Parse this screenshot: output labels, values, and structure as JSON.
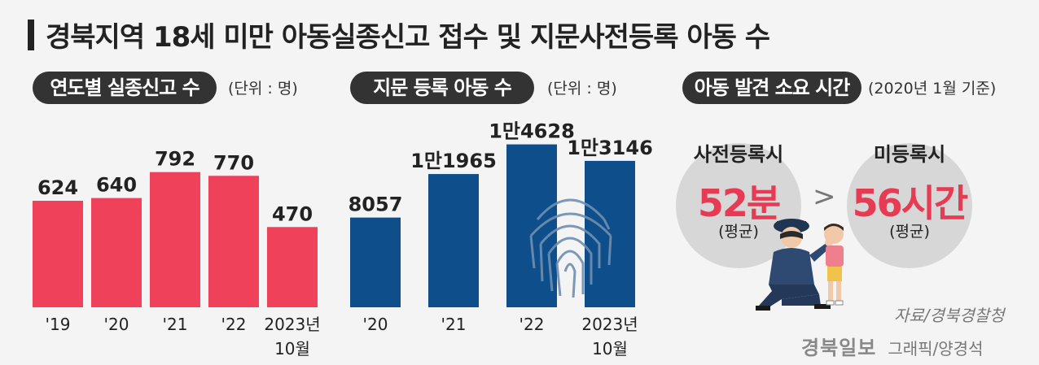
{
  "header": {
    "title": "경북지역 18세 미만 아동실종신고 접수 및 지문사전등록 아동 수"
  },
  "sections": {
    "reports": {
      "label": "연도별 실종신고 수",
      "unit": "(단위 : 명)"
    },
    "fingerprint": {
      "label": "지문 등록 아동 수",
      "unit": "(단위 : 명)"
    },
    "search_time": {
      "label": "아동 발견 소요 시간",
      "note": "(2020년 1월 기준)"
    }
  },
  "chart_data": [
    {
      "type": "bar",
      "categories": [
        "'19",
        "'20",
        "'21",
        "'22",
        "2023년 10월"
      ],
      "values": [
        624,
        640,
        792,
        770,
        470
      ],
      "value_labels": [
        "624",
        "640",
        "792",
        "770",
        "470"
      ],
      "color": "#ef4159"
    },
    {
      "type": "bar",
      "categories": [
        "'20",
        "'21",
        "'22",
        "2023년 10월"
      ],
      "values": [
        8057,
        11965,
        14628,
        13146
      ],
      "value_labels": [
        "8057",
        "1만1965",
        "1만4628",
        "1만3146"
      ],
      "color": "#0d4e8b"
    }
  ],
  "comparison": {
    "registered": {
      "label": "사전등록시",
      "value": "52분",
      "sub": "(평균)"
    },
    "separator": ">",
    "unregistered": {
      "label": "미등록시",
      "value": "56시간",
      "sub": "(평균)"
    }
  },
  "footer": {
    "source": "자료/경북경찰청",
    "brand": "경북일보",
    "credit": "그래픽/양경석"
  },
  "icons": [
    "fingerprint-icon",
    "police-officer-child-illustration"
  ]
}
